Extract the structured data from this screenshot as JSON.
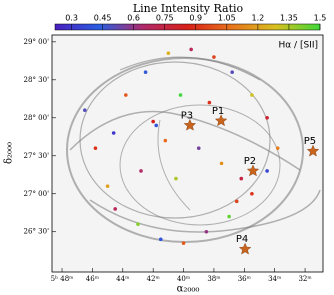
{
  "chart_data": {
    "type": "scatter",
    "title": "Line Intensity Ratio",
    "xlabel": "α₂₀₀₀",
    "ylabel": "δ₂₀₀₀",
    "legend": "Hα / [SII]",
    "xlim": [
      48.66,
      30.82
    ],
    "ylim": [
      25.97,
      29.09
    ],
    "xticks": [
      {
        "value": 48,
        "label": "5ʰ 48ᵐ"
      },
      {
        "value": 46,
        "label": "46ᵐ"
      },
      {
        "value": 44,
        "label": "44ᵐ"
      },
      {
        "value": 42,
        "label": "42ᵐ"
      },
      {
        "value": 40,
        "label": "40ᵐ"
      },
      {
        "value": 38,
        "label": "38ᵐ"
      },
      {
        "value": 36,
        "label": "36ᵐ"
      },
      {
        "value": 34,
        "label": "34ᵐ"
      },
      {
        "value": 32,
        "label": "32ᵐ"
      }
    ],
    "yticks": [
      {
        "value": 29,
        "label": "29° 00'"
      },
      {
        "value": 28.5,
        "label": "28° 30'"
      },
      {
        "value": 28,
        "label": "28° 00'"
      },
      {
        "value": 27.5,
        "label": "27° 30'"
      },
      {
        "value": 27,
        "label": "27° 00'"
      },
      {
        "value": 26.5,
        "label": "26° 30'"
      }
    ],
    "clim": [
      0.22,
      1.5
    ],
    "cticks": [
      0.3,
      0.45,
      0.6,
      0.75,
      0.9,
      1.05,
      1.2,
      1.35,
      1.5
    ],
    "colormap": [
      "#4a1fbf",
      "#2a5ee0",
      "#b02a6a",
      "#d8201a",
      "#e8741c",
      "#d8c020",
      "#3fd83a"
    ],
    "series": [
      {
        "name": "Hα / [SII]",
        "x": [
          46.5,
          45.8,
          45.0,
          44.5,
          43.0,
          41.5,
          40.0,
          38.5,
          37.0,
          35.5,
          34.5,
          33.8,
          34.5,
          35.5,
          36.8,
          38.0,
          39.5,
          41.0,
          42.5,
          43.8,
          42.0,
          41.8,
          41.2,
          39.0,
          37.5,
          36.2,
          40.5,
          42.8,
          38.3,
          44.6,
          40.2,
          36.5
        ],
        "y": [
          28.1,
          27.6,
          27.1,
          26.8,
          26.6,
          26.4,
          26.35,
          26.5,
          26.7,
          27.0,
          27.3,
          27.6,
          28.0,
          28.3,
          28.6,
          28.8,
          28.9,
          28.85,
          28.6,
          28.3,
          27.95,
          27.9,
          27.7,
          27.6,
          27.4,
          27.2,
          27.2,
          27.3,
          28.2,
          27.8,
          28.3,
          26.9
        ],
        "values": [
          0.5,
          0.9,
          1.2,
          0.7,
          1.4,
          0.4,
          1.0,
          0.6,
          1.45,
          0.9,
          0.35,
          1.1,
          0.8,
          1.3,
          0.5,
          0.95,
          0.7,
          1.25,
          0.45,
          1.0,
          0.85,
          0.4,
          1.05,
          0.55,
          1.15,
          0.75,
          1.35,
          0.65,
          0.9,
          0.3,
          1.5,
          0.95
        ]
      }
    ],
    "markers": {
      "color": "#c8641e",
      "names": [
        "P1",
        "P2",
        "P3",
        "P4",
        "P5"
      ],
      "x": [
        37.53,
        35.43,
        39.58,
        35.95,
        31.48
      ],
      "y": [
        27.96,
        27.3,
        27.9,
        26.27,
        27.56
      ]
    }
  }
}
